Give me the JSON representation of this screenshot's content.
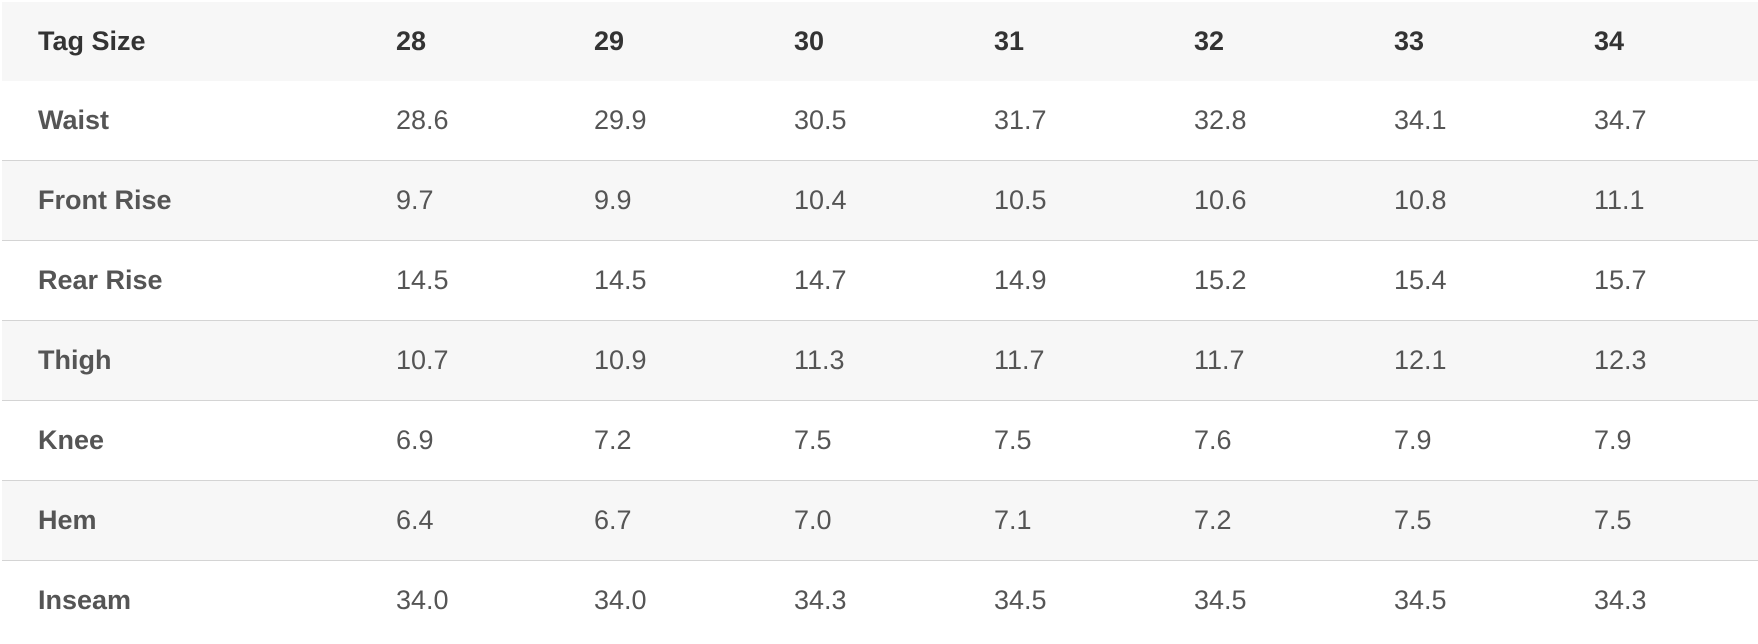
{
  "table": {
    "header": {
      "label": "Tag Size",
      "sizes": [
        "28",
        "29",
        "30",
        "31",
        "32",
        "33",
        "34"
      ]
    },
    "rows": [
      {
        "label": "Waist",
        "values": [
          "28.6",
          "29.9",
          "30.5",
          "31.7",
          "32.8",
          "34.1",
          "34.7"
        ]
      },
      {
        "label": "Front Rise",
        "values": [
          "9.7",
          "9.9",
          "10.4",
          "10.5",
          "10.6",
          "10.8",
          "11.1"
        ]
      },
      {
        "label": "Rear Rise",
        "values": [
          "14.5",
          "14.5",
          "14.7",
          "14.9",
          "15.2",
          "15.4",
          "15.7"
        ]
      },
      {
        "label": "Thigh",
        "values": [
          "10.7",
          "10.9",
          "11.3",
          "11.7",
          "11.7",
          "12.1",
          "12.3"
        ]
      },
      {
        "label": "Knee",
        "values": [
          "6.9",
          "7.2",
          "7.5",
          "7.5",
          "7.6",
          "7.9",
          "7.9"
        ]
      },
      {
        "label": "Hem",
        "values": [
          "6.4",
          "6.7",
          "7.0",
          "7.1",
          "7.2",
          "7.5",
          "7.5"
        ]
      },
      {
        "label": "Inseam",
        "values": [
          "34.0",
          "34.0",
          "34.3",
          "34.5",
          "34.5",
          "34.5",
          "34.3"
        ]
      }
    ]
  }
}
